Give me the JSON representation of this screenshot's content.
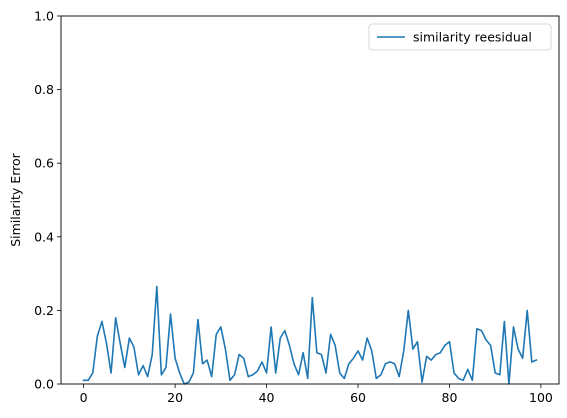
{
  "chart_data": {
    "type": "line",
    "title": "",
    "xlabel": "",
    "ylabel": "Similarity Error",
    "xlim": [
      -4.95,
      103.95
    ],
    "ylim": [
      0,
      1.0
    ],
    "xticks": [
      0,
      20,
      40,
      60,
      80,
      100
    ],
    "xtick_labels": [
      "0",
      "20",
      "40",
      "60",
      "80",
      "100"
    ],
    "yticks": [
      0.0,
      0.2,
      0.4,
      0.6,
      0.8,
      1.0
    ],
    "ytick_labels": [
      "0.0",
      "0.2",
      "0.4",
      "0.6",
      "0.8",
      "1.0"
    ],
    "grid": false,
    "legend_position": "top-right",
    "series": [
      {
        "name": "similarity reesidual",
        "color": "#1f77b4",
        "x": [
          0,
          1,
          2,
          3,
          4,
          5,
          6,
          7,
          8,
          9,
          10,
          11,
          12,
          13,
          14,
          15,
          16,
          17,
          18,
          19,
          20,
          21,
          22,
          23,
          24,
          25,
          26,
          27,
          28,
          29,
          30,
          31,
          32,
          33,
          34,
          35,
          36,
          37,
          38,
          39,
          40,
          41,
          42,
          43,
          44,
          45,
          46,
          47,
          48,
          49,
          50,
          51,
          52,
          53,
          54,
          55,
          56,
          57,
          58,
          59,
          60,
          61,
          62,
          63,
          64,
          65,
          66,
          67,
          68,
          69,
          70,
          71,
          72,
          73,
          74,
          75,
          76,
          77,
          78,
          79,
          80,
          81,
          82,
          83,
          84,
          85,
          86,
          87,
          88,
          89,
          90,
          91,
          92,
          93,
          94,
          95,
          96,
          97,
          98,
          99
        ],
        "y": [
          0.01,
          0.01,
          0.03,
          0.13,
          0.17,
          0.11,
          0.03,
          0.18,
          0.11,
          0.045,
          0.125,
          0.1,
          0.025,
          0.05,
          0.02,
          0.08,
          0.265,
          0.025,
          0.045,
          0.19,
          0.07,
          0.03,
          0.0,
          0.005,
          0.03,
          0.175,
          0.055,
          0.065,
          0.02,
          0.135,
          0.155,
          0.095,
          0.01,
          0.025,
          0.08,
          0.07,
          0.02,
          0.025,
          0.035,
          0.06,
          0.03,
          0.155,
          0.03,
          0.125,
          0.145,
          0.105,
          0.055,
          0.025,
          0.085,
          0.015,
          0.235,
          0.085,
          0.08,
          0.03,
          0.135,
          0.105,
          0.03,
          0.015,
          0.055,
          0.07,
          0.09,
          0.065,
          0.125,
          0.09,
          0.015,
          0.025,
          0.055,
          0.06,
          0.055,
          0.02,
          0.09,
          0.2,
          0.095,
          0.115,
          0.005,
          0.075,
          0.065,
          0.08,
          0.085,
          0.105,
          0.115,
          0.03,
          0.015,
          0.01,
          0.04,
          0.01,
          0.15,
          0.145,
          0.12,
          0.105,
          0.03,
          0.025,
          0.17,
          0.0,
          0.155,
          0.095,
          0.07,
          0.2,
          0.06,
          0.065
        ]
      }
    ]
  }
}
